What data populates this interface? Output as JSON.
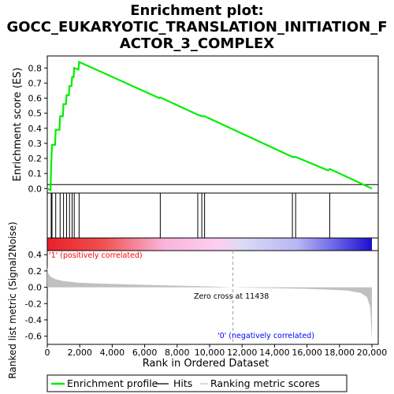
{
  "title_lines": [
    "Enrichment plot:",
    "GOCC_EUKARYOTIC_TRANSLATION_INITIATION_F",
    "ACTOR_3_COMPLEX"
  ],
  "colors": {
    "es_line": "#00ee00",
    "hits": "#000000",
    "metric_fill": "#c0c0c0",
    "zero_cross": "#a0a0a0",
    "pos_label": "#ff0000",
    "neg_label": "#0000ff"
  },
  "chart_data": {
    "type": "line",
    "x_range": [
      0,
      20000
    ],
    "x_ticks": [
      0,
      2000,
      4000,
      6000,
      8000,
      10000,
      12000,
      14000,
      16000,
      18000,
      20000
    ],
    "x_tick_labels": [
      "0",
      "2,000",
      "4,000",
      "6,000",
      "8,000",
      "10,000",
      "12,000",
      "14,000",
      "16,000",
      "18,000",
      "20,000"
    ],
    "xlabel": "Rank in Ordered Dataset",
    "enrichment": {
      "ylabel": "Enrichment score (ES)",
      "ylim": [
        -0.03,
        0.88
      ],
      "y_ticks": [
        0.0,
        0.1,
        0.2,
        0.3,
        0.4,
        0.5,
        0.6,
        0.7,
        0.8
      ],
      "y_tick_labels": [
        "0.0",
        "0.1",
        "0.2",
        "0.3",
        "0.4",
        "0.5",
        "0.6",
        "0.7",
        "0.8"
      ],
      "points": [
        [
          0,
          0.0
        ],
        [
          200,
          -0.01
        ],
        [
          240,
          0.14
        ],
        [
          290,
          0.29
        ],
        [
          480,
          0.29
        ],
        [
          520,
          0.39
        ],
        [
          750,
          0.39
        ],
        [
          790,
          0.48
        ],
        [
          960,
          0.48
        ],
        [
          1000,
          0.56
        ],
        [
          1150,
          0.56
        ],
        [
          1190,
          0.62
        ],
        [
          1330,
          0.62
        ],
        [
          1370,
          0.68
        ],
        [
          1490,
          0.68
        ],
        [
          1530,
          0.74
        ],
        [
          1620,
          0.74
        ],
        [
          1660,
          0.8
        ],
        [
          1920,
          0.79
        ],
        [
          1960,
          0.84
        ],
        [
          6900,
          0.6
        ],
        [
          6960,
          0.605
        ],
        [
          9270,
          0.49
        ],
        [
          9520,
          0.48
        ],
        [
          9690,
          0.48
        ],
        [
          15100,
          0.21
        ],
        [
          15300,
          0.21
        ],
        [
          17300,
          0.12
        ],
        [
          17400,
          0.13
        ],
        [
          20000,
          0.0
        ]
      ]
    },
    "hits": [
      240,
      290,
      520,
      790,
      1000,
      1190,
      1370,
      1530,
      1660,
      1960,
      6960,
      9270,
      9520,
      9690,
      15100,
      15300,
      17400
    ],
    "metric": {
      "ylabel": "Ranked list metric (Signal2Noise)",
      "ylim": [
        -0.7,
        0.45
      ],
      "y_ticks": [
        -0.6,
        -0.4,
        -0.2,
        0.0,
        0.2,
        0.4
      ],
      "y_tick_labels": [
        "-0.6",
        "-0.4",
        "-0.2",
        "0.0",
        "0.2",
        "0.4"
      ],
      "points": [
        [
          0,
          0.26
        ],
        [
          60,
          0.17
        ],
        [
          200,
          0.13
        ],
        [
          500,
          0.1
        ],
        [
          1000,
          0.075
        ],
        [
          2000,
          0.055
        ],
        [
          4000,
          0.04
        ],
        [
          6000,
          0.03
        ],
        [
          8000,
          0.02
        ],
        [
          10000,
          0.01
        ],
        [
          11438,
          0.0
        ],
        [
          13000,
          -0.008
        ],
        [
          15000,
          -0.015
        ],
        [
          17000,
          -0.025
        ],
        [
          18500,
          -0.04
        ],
        [
          19300,
          -0.07
        ],
        [
          19700,
          -0.12
        ],
        [
          19900,
          -0.25
        ],
        [
          20000,
          -0.65
        ]
      ],
      "zero_cross_rank": 11438
    },
    "annotations": {
      "zero_cross": "Zero cross at 11438",
      "positive": "'1' (positively correlated)",
      "negative": "'0' (negatively correlated)"
    }
  },
  "legend": {
    "items": [
      {
        "label": "Enrichment profile",
        "color": "#00ee00"
      },
      {
        "label": "Hits",
        "color": "#000000"
      },
      {
        "label": "Ranking metric scores",
        "color": "#c0c0c0"
      }
    ]
  }
}
